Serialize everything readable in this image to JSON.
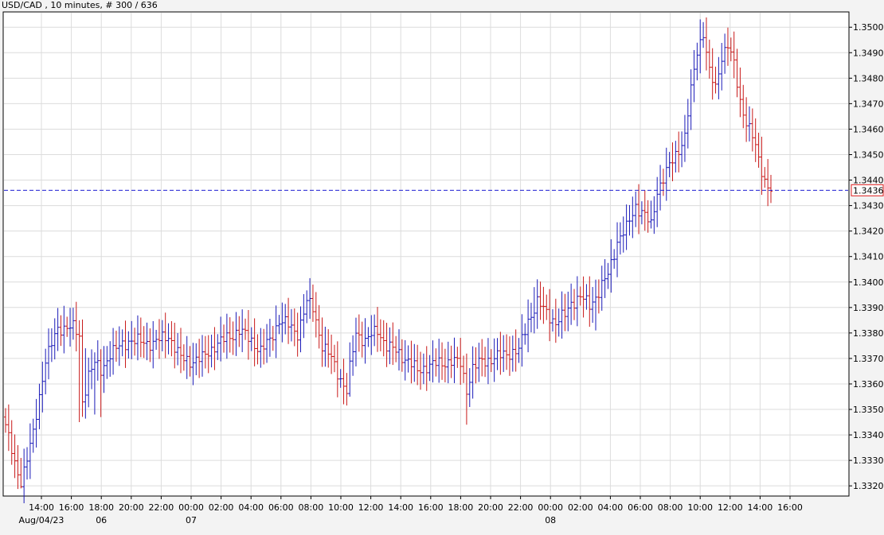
{
  "chart_data": {
    "type": "candlestick",
    "title": "USD/CAD , 10 minutes, # 300 / 636",
    "ylim": [
      1.3316,
      1.3506
    ],
    "y_ticks": [
      1.332,
      1.333,
      1.334,
      1.335,
      1.336,
      1.337,
      1.338,
      1.339,
      1.34,
      1.341,
      1.342,
      1.343,
      1.344,
      1.345,
      1.346,
      1.347,
      1.348,
      1.349,
      1.35
    ],
    "y_tick_labels": [
      "1.3320",
      "1.3330",
      "1.3340",
      "1.3350",
      "1.3360",
      "1.3370",
      "1.3380",
      "1.3390",
      "1.3400",
      "1.3410",
      "1.3420",
      "1.3430",
      "1.3440",
      "1.3450",
      "1.3460",
      "1.3470",
      "1.3480",
      "1.3490",
      "1.3500"
    ],
    "x_ticks": [
      {
        "time": "14:00",
        "date": "Aug/04/23"
      },
      {
        "time": "16:00",
        "date": ""
      },
      {
        "time": "18:00",
        "date": "06"
      },
      {
        "time": "20:00",
        "date": ""
      },
      {
        "time": "22:00",
        "date": ""
      },
      {
        "time": "00:00",
        "date": "07"
      },
      {
        "time": "02:00",
        "date": ""
      },
      {
        "time": "04:00",
        "date": ""
      },
      {
        "time": "06:00",
        "date": ""
      },
      {
        "time": "08:00",
        "date": ""
      },
      {
        "time": "10:00",
        "date": ""
      },
      {
        "time": "12:00",
        "date": ""
      },
      {
        "time": "14:00",
        "date": ""
      },
      {
        "time": "16:00",
        "date": ""
      },
      {
        "time": "18:00",
        "date": ""
      },
      {
        "time": "20:00",
        "date": ""
      },
      {
        "time": "22:00",
        "date": ""
      },
      {
        "time": "00:00",
        "date": "08"
      },
      {
        "time": "02:00",
        "date": ""
      },
      {
        "time": "04:00",
        "date": ""
      },
      {
        "time": "06:00",
        "date": ""
      },
      {
        "time": "08:00",
        "date": ""
      },
      {
        "time": "10:00",
        "date": ""
      },
      {
        "time": "12:00",
        "date": ""
      },
      {
        "time": "14:00",
        "date": ""
      },
      {
        "time": "16:00",
        "date": ""
      }
    ],
    "current_price": 1.3436,
    "current_price_label": "1.3436",
    "grid": true,
    "colors": {
      "background": "#ffffff",
      "frame_background": "#f3f3f3",
      "grid": "#dcdcdc",
      "up": "#1a1ab8",
      "down": "#c81818",
      "current_line": "#1e1ed2",
      "price_tag_border": "#e02020",
      "price_tag_bg": "#ffffff"
    },
    "anchors": [
      [
        0,
        1.3344
      ],
      [
        3,
        1.3328
      ],
      [
        5,
        1.3322
      ],
      [
        9,
        1.334
      ],
      [
        13,
        1.337
      ],
      [
        17,
        1.3381
      ],
      [
        20,
        1.3383
      ],
      [
        22,
        1.3382
      ],
      [
        24,
        1.3378
      ],
      [
        25,
        1.3353
      ],
      [
        27,
        1.3364
      ],
      [
        29,
        1.3368
      ],
      [
        31,
        1.3365
      ],
      [
        34,
        1.3372
      ],
      [
        40,
        1.3377
      ],
      [
        48,
        1.3376
      ],
      [
        53,
        1.3379
      ],
      [
        57,
        1.337
      ],
      [
        60,
        1.3369
      ],
      [
        64,
        1.337
      ],
      [
        68,
        1.3375
      ],
      [
        72,
        1.3378
      ],
      [
        76,
        1.3381
      ],
      [
        80,
        1.3377
      ],
      [
        83,
        1.3373
      ],
      [
        86,
        1.3377
      ],
      [
        89,
        1.3385
      ],
      [
        92,
        1.3383
      ],
      [
        95,
        1.338
      ],
      [
        98,
        1.3392
      ],
      [
        100,
        1.339
      ],
      [
        103,
        1.3375
      ],
      [
        106,
        1.337
      ],
      [
        109,
        1.3362
      ],
      [
        111,
        1.3357
      ],
      [
        112,
        1.3366
      ],
      [
        114,
        1.338
      ],
      [
        117,
        1.3377
      ],
      [
        121,
        1.3381
      ],
      [
        124,
        1.3375
      ],
      [
        128,
        1.3372
      ],
      [
        131,
        1.3369
      ],
      [
        134,
        1.3365
      ],
      [
        137,
        1.3367
      ],
      [
        141,
        1.3368
      ],
      [
        145,
        1.3369
      ],
      [
        148,
        1.3368
      ],
      [
        150,
        1.3358
      ],
      [
        152,
        1.3366
      ],
      [
        155,
        1.3369
      ],
      [
        159,
        1.337
      ],
      [
        163,
        1.3372
      ],
      [
        167,
        1.3373
      ],
      [
        170,
        1.3385
      ],
      [
        173,
        1.3392
      ],
      [
        176,
        1.3388
      ],
      [
        179,
        1.3384
      ],
      [
        182,
        1.3387
      ],
      [
        184,
        1.3392
      ],
      [
        187,
        1.3394
      ],
      [
        190,
        1.3391
      ],
      [
        193,
        1.3396
      ],
      [
        196,
        1.3403
      ],
      [
        199,
        1.3416
      ],
      [
        202,
        1.3421
      ],
      [
        205,
        1.343
      ],
      [
        208,
        1.3426
      ],
      [
        210,
        1.3422
      ],
      [
        212,
        1.3436
      ],
      [
        215,
        1.3443
      ],
      [
        218,
        1.345
      ],
      [
        221,
        1.3457
      ],
      [
        223,
        1.3475
      ],
      [
        225,
        1.3491
      ],
      [
        227,
        1.3498
      ],
      [
        229,
        1.3482
      ],
      [
        231,
        1.3476
      ],
      [
        233,
        1.3489
      ],
      [
        235,
        1.3493
      ],
      [
        237,
        1.3485
      ],
      [
        239,
        1.3471
      ],
      [
        241,
        1.3463
      ],
      [
        243,
        1.3457
      ],
      [
        245,
        1.3448
      ],
      [
        247,
        1.344
      ],
      [
        249,
        1.3436
      ]
    ],
    "bar_count": 250,
    "spikes": [
      {
        "bar": 24,
        "low": 1.3345,
        "high": 1.3385
      },
      {
        "bar": 26,
        "high": 1.3374
      },
      {
        "bar": 29,
        "low": 1.3348
      },
      {
        "bar": 31,
        "low": 1.3347
      },
      {
        "bar": 100,
        "high": 1.3399
      },
      {
        "bar": 112,
        "low": 1.3355
      },
      {
        "bar": 114,
        "high": 1.3386
      },
      {
        "bar": 150,
        "low": 1.3344
      },
      {
        "bar": 172,
        "high": 1.3398
      },
      {
        "bar": 192,
        "low": 1.3381
      },
      {
        "bar": 210,
        "low": 1.3421
      },
      {
        "bar": 227,
        "high": 1.3502
      },
      {
        "bar": 231,
        "low": 1.3474
      },
      {
        "bar": 5,
        "low": 1.3319
      }
    ]
  }
}
